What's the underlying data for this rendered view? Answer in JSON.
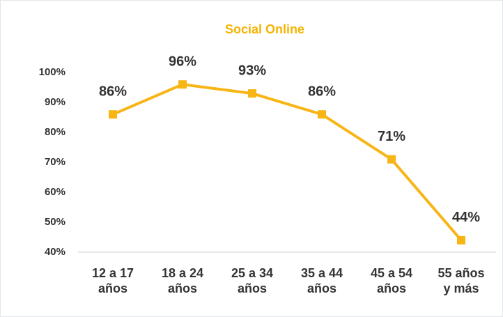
{
  "chart_data": {
    "type": "line",
    "title": "Social Online",
    "categories": [
      "12 a 17 años",
      "18 a 24 años",
      "25 a 34 años",
      "35 a 44 años",
      "45 a 54 años",
      "55 años y más"
    ],
    "values": [
      86,
      96,
      93,
      86,
      71,
      44
    ],
    "value_labels": [
      "86%",
      "96%",
      "93%",
      "86%",
      "71%",
      "44%"
    ],
    "color": "#f7b516",
    "ylim": [
      40,
      100
    ],
    "yticks": [
      {
        "value": 40,
        "label": "40%"
      },
      {
        "value": 50,
        "label": "50%"
      },
      {
        "value": 60,
        "label": "60%"
      },
      {
        "value": 70,
        "label": "70%"
      },
      {
        "value": 80,
        "label": "80%"
      },
      {
        "value": 90,
        "label": "90%"
      },
      {
        "value": 100,
        "label": "100%"
      }
    ],
    "grid": false
  }
}
